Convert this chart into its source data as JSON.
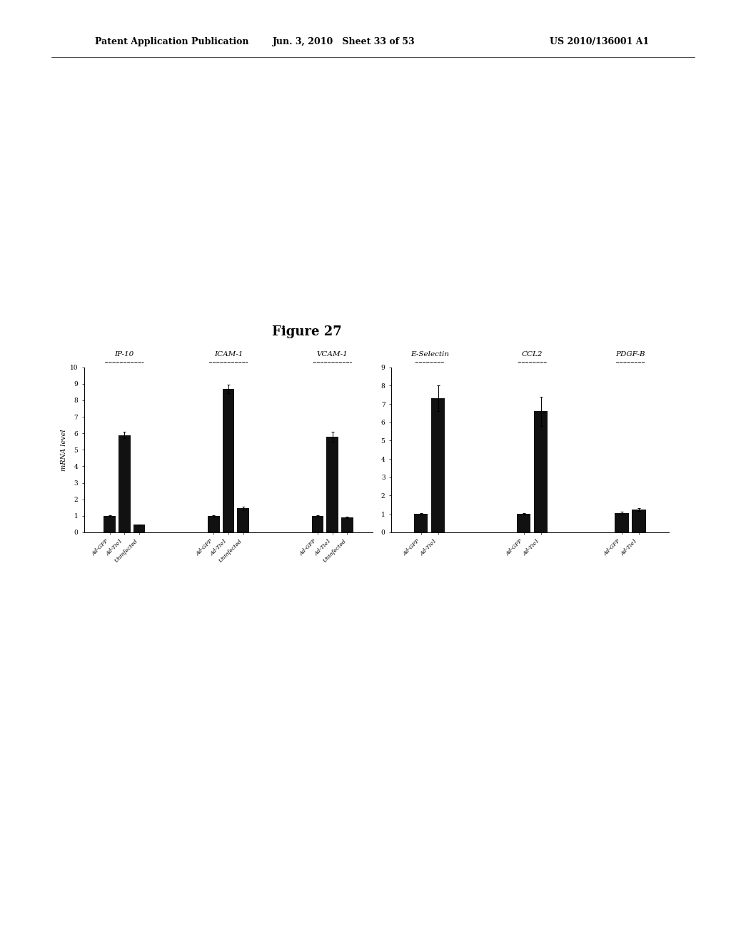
{
  "figure_title": "Figure 27",
  "header_left": "Patent Application Publication",
  "header_mid": "Jun. 3, 2010   Sheet 33 of 53",
  "header_right": "US 2010/136001 A1",
  "ylabel": "mRNA level",
  "background_color": "#ffffff",
  "panel_left": {
    "ylim": [
      0,
      10
    ],
    "yticks": [
      0,
      1,
      2,
      3,
      4,
      5,
      6,
      7,
      8,
      9,
      10
    ],
    "groups": [
      {
        "title": "IP-10",
        "bars": [
          {
            "label": "Ad-GFP",
            "value": 1.0,
            "error": 0.05,
            "color": "#111111"
          },
          {
            "label": "Ad-Tie1",
            "value": 5.9,
            "error": 0.2,
            "color": "#111111"
          },
          {
            "label": "Uninfected",
            "value": 0.45,
            "error": 0.03,
            "color": "#111111"
          }
        ]
      },
      {
        "title": "ICAM-1",
        "bars": [
          {
            "label": "Ad-GFP",
            "value": 1.0,
            "error": 0.05,
            "color": "#111111"
          },
          {
            "label": "Ad-Tie1",
            "value": 8.7,
            "error": 0.25,
            "color": "#111111"
          },
          {
            "label": "Uninfected",
            "value": 1.45,
            "error": 0.1,
            "color": "#111111"
          }
        ]
      },
      {
        "title": "VCAM-1",
        "bars": [
          {
            "label": "Ad-GFP",
            "value": 1.0,
            "error": 0.05,
            "color": "#111111"
          },
          {
            "label": "Ad-Tie1",
            "value": 5.8,
            "error": 0.3,
            "color": "#111111"
          },
          {
            "label": "Uninfected",
            "value": 0.9,
            "error": 0.05,
            "color": "#111111"
          }
        ]
      }
    ]
  },
  "panel_right": {
    "ylim": [
      0,
      9
    ],
    "yticks": [
      0,
      1,
      2,
      3,
      4,
      5,
      6,
      7,
      8,
      9
    ],
    "groups": [
      {
        "title": "E-Selectin",
        "bars": [
          {
            "label": "Ad-GFP",
            "value": 1.0,
            "error": 0.05,
            "color": "#111111"
          },
          {
            "label": "Ad-Tie1",
            "value": 7.3,
            "error": 0.7,
            "color": "#111111"
          }
        ]
      },
      {
        "title": "CCL2",
        "bars": [
          {
            "label": "Ad-GFP",
            "value": 1.0,
            "error": 0.05,
            "color": "#111111"
          },
          {
            "label": "Ad-Tie1",
            "value": 6.6,
            "error": 0.8,
            "color": "#111111"
          }
        ]
      },
      {
        "title": "PDGF-B",
        "bars": [
          {
            "label": "Ad-GFP",
            "value": 1.05,
            "error": 0.08,
            "color": "#111111"
          },
          {
            "label": "Ad-Tie1",
            "value": 1.25,
            "error": 0.08,
            "color": "#111111"
          }
        ]
      }
    ]
  }
}
